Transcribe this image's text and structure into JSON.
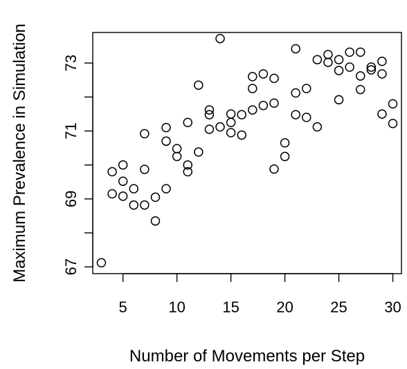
{
  "chart_data": {
    "type": "scatter",
    "title": "",
    "xlabel": "Number of Movements per Step",
    "ylabel": "Maximum Prevalence in Simulation",
    "xlim": [
      2.2,
      30.8
    ],
    "ylim": [
      66.8,
      73.9
    ],
    "x_ticks": [
      5,
      10,
      15,
      20,
      25,
      30
    ],
    "y_ticks": [
      67,
      69,
      71,
      73
    ],
    "y_ticks_minor": [
      68,
      70,
      72
    ],
    "grid": false,
    "legend": "none",
    "marker": "open-circle",
    "points": [
      {
        "x": 3,
        "y": 67.12
      },
      {
        "x": 4,
        "y": 69.8
      },
      {
        "x": 4,
        "y": 69.15
      },
      {
        "x": 5,
        "y": 70.0
      },
      {
        "x": 5,
        "y": 69.52
      },
      {
        "x": 5,
        "y": 69.08
      },
      {
        "x": 6,
        "y": 69.3
      },
      {
        "x": 6,
        "y": 68.82
      },
      {
        "x": 7,
        "y": 70.92
      },
      {
        "x": 7,
        "y": 69.87
      },
      {
        "x": 7,
        "y": 68.82
      },
      {
        "x": 8,
        "y": 69.05
      },
      {
        "x": 8,
        "y": 68.35
      },
      {
        "x": 9,
        "y": 71.1
      },
      {
        "x": 9,
        "y": 70.7
      },
      {
        "x": 9,
        "y": 69.3
      },
      {
        "x": 10,
        "y": 70.48
      },
      {
        "x": 10,
        "y": 70.25
      },
      {
        "x": 11,
        "y": 71.25
      },
      {
        "x": 11,
        "y": 70.0
      },
      {
        "x": 11,
        "y": 69.8
      },
      {
        "x": 12,
        "y": 72.35
      },
      {
        "x": 12,
        "y": 70.38
      },
      {
        "x": 13,
        "y": 71.62
      },
      {
        "x": 13,
        "y": 71.48
      },
      {
        "x": 13,
        "y": 71.05
      },
      {
        "x": 14,
        "y": 73.72
      },
      {
        "x": 14,
        "y": 71.12
      },
      {
        "x": 15,
        "y": 71.5
      },
      {
        "x": 15,
        "y": 71.25
      },
      {
        "x": 15,
        "y": 70.95
      },
      {
        "x": 16,
        "y": 71.48
      },
      {
        "x": 16,
        "y": 70.88
      },
      {
        "x": 17,
        "y": 72.6
      },
      {
        "x": 17,
        "y": 72.25
      },
      {
        "x": 17,
        "y": 71.62
      },
      {
        "x": 18,
        "y": 72.68
      },
      {
        "x": 18,
        "y": 71.75
      },
      {
        "x": 19,
        "y": 72.55
      },
      {
        "x": 19,
        "y": 71.82
      },
      {
        "x": 19,
        "y": 69.88
      },
      {
        "x": 20,
        "y": 70.65
      },
      {
        "x": 20,
        "y": 70.25
      },
      {
        "x": 21,
        "y": 73.42
      },
      {
        "x": 21,
        "y": 72.12
      },
      {
        "x": 21,
        "y": 71.48
      },
      {
        "x": 22,
        "y": 72.25
      },
      {
        "x": 22,
        "y": 71.4
      },
      {
        "x": 23,
        "y": 73.1
      },
      {
        "x": 23,
        "y": 71.12
      },
      {
        "x": 24,
        "y": 73.25
      },
      {
        "x": 24,
        "y": 73.02
      },
      {
        "x": 25,
        "y": 73.1
      },
      {
        "x": 25,
        "y": 72.78
      },
      {
        "x": 25,
        "y": 71.92
      },
      {
        "x": 26,
        "y": 73.32
      },
      {
        "x": 26,
        "y": 72.88
      },
      {
        "x": 27,
        "y": 73.32
      },
      {
        "x": 27,
        "y": 72.62
      },
      {
        "x": 27,
        "y": 72.22
      },
      {
        "x": 28,
        "y": 72.88
      },
      {
        "x": 28,
        "y": 72.8
      },
      {
        "x": 29,
        "y": 73.05
      },
      {
        "x": 29,
        "y": 72.68
      },
      {
        "x": 29,
        "y": 71.5
      },
      {
        "x": 30,
        "y": 71.8
      },
      {
        "x": 30,
        "y": 71.22
      }
    ]
  }
}
